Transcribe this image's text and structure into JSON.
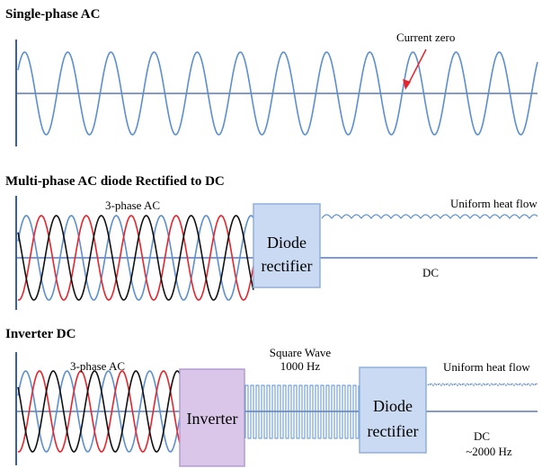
{
  "panels": [
    {
      "title": "Single-phase AC",
      "annotation": "Current zero"
    },
    {
      "title": "Multi-phase AC diode Rectified to DC",
      "input_label": "3-phase AC",
      "box": {
        "line1": "Diode",
        "line2": "rectifier"
      },
      "heat_label": "Uniform heat flow",
      "output_label": "DC"
    },
    {
      "title": "Inverter DC",
      "input_label": "3-phase AC",
      "inverter_label": "Inverter",
      "square_wave": {
        "line1": "Square Wave",
        "line2": "1000 Hz"
      },
      "box": {
        "line1": "Diode",
        "line2": "rectifier"
      },
      "heat_label": "Uniform heat flow",
      "output": {
        "line1": "DC",
        "line2": "~2000 Hz"
      }
    }
  ],
  "colors": {
    "wave_blue": "#5b8fd0",
    "phase_red": "#e8232b",
    "phase_black": "#111111",
    "axis_blue": "#3a5fa8",
    "box_blue_fill": "#c9daf2",
    "box_blue_stroke": "#8fb0dc",
    "box_purple_fill": "#d9c6e9",
    "box_purple_stroke": "#b39bd0",
    "arrow_red": "#e8232b"
  }
}
